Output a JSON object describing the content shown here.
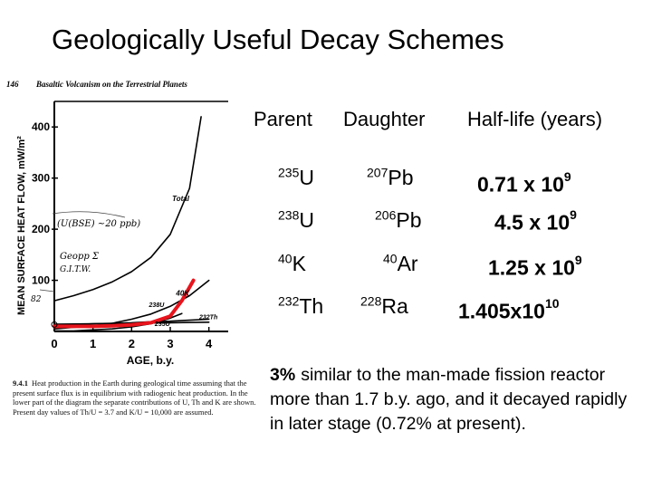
{
  "slide": {
    "title": "Geologically Useful Decay Schemes"
  },
  "figure": {
    "page_number": "146",
    "book_header": "Basaltic Volcanism on the Terrestrial Planets",
    "caption_num": "9.4.1",
    "caption_text": "Heat production in the Earth during geological time assuming that the present surface flux is in equilibrium with radiogenic heat production. In the lower part of the diagram the separate contributions of U, Th and K are shown. Present day values of Th/U = 3.7 and K/U = 10,000 are assumed.",
    "handwritten": {
      "line1": "(U(BSE) ~20 ppb)",
      "line2": "Geopp Σ",
      "line3": "G.I.T.W.",
      "mark": "82"
    }
  },
  "chart_data": {
    "type": "line",
    "xlabel": "AGE, b.y.",
    "ylabel": "MEAN SURFACE HEAT FLOW, mW/m²",
    "xlim": [
      0,
      4.5
    ],
    "ylim": [
      0,
      450
    ],
    "xticks": [
      "0",
      "1",
      "2",
      "3",
      "4"
    ],
    "yticks": [
      "100",
      "200",
      "300",
      "400"
    ],
    "grid": false,
    "series": [
      {
        "name": "Total",
        "x": [
          0,
          0.5,
          1.0,
          1.5,
          2.0,
          2.5,
          3.0,
          3.5,
          3.8
        ],
        "y": [
          60,
          70,
          82,
          97,
          117,
          145,
          190,
          280,
          420
        ],
        "color": "#000000"
      },
      {
        "name": "40K",
        "x": [
          0,
          0.5,
          1.0,
          1.5,
          2.0,
          2.5,
          3.0,
          3.5,
          4.0
        ],
        "y": [
          5,
          8,
          11,
          16,
          24,
          34,
          49,
          70,
          100
        ],
        "color": "#000000"
      },
      {
        "name": "238U",
        "x": [
          0,
          0.5,
          1.0,
          1.5,
          2.0,
          2.5,
          3.0,
          3.5,
          4.0
        ],
        "y": [
          12,
          13,
          15,
          16,
          17,
          19,
          20,
          22,
          24
        ],
        "color": "#000000"
      },
      {
        "name": "232Th",
        "x": [
          0,
          0.5,
          1.0,
          1.5,
          2.0,
          2.5,
          3.0,
          3.5,
          4.0
        ],
        "y": [
          14,
          14.5,
          15,
          15.5,
          16,
          16.5,
          17,
          17.5,
          18
        ],
        "color": "#000000"
      },
      {
        "name": "235U",
        "x": [
          0,
          0.5,
          1.0,
          1.5,
          2.0,
          2.5,
          3.0,
          3.3
        ],
        "y": [
          1,
          1,
          3,
          5,
          9,
          15,
          26,
          35
        ],
        "color": "#000000"
      },
      {
        "name": "",
        "x": [
          0,
          0.5,
          1.0,
          1.5,
          2.0,
          2.5,
          3.0,
          3.3,
          3.6
        ],
        "y": [
          10,
          10,
          10,
          11,
          13,
          17,
          30,
          60,
          100
        ],
        "color": "#e8141c"
      }
    ]
  },
  "table": {
    "headers": [
      "Parent",
      "Daughter",
      "Half-life (years)"
    ],
    "rows": [
      {
        "parent_mass": "235",
        "parent": "U",
        "daughter_mass": "207",
        "daughter": "Pb",
        "halflife": "0.71 x 10",
        "exp": "9"
      },
      {
        "parent_mass": "238",
        "parent": "U",
        "daughter_mass": "206",
        "daughter": "Pb",
        "halflife": "4.5 x 10",
        "exp": "9"
      },
      {
        "parent_mass": "40",
        "parent": "K",
        "daughter_mass": "40",
        "daughter": "Ar",
        "halflife": "1.25 x 10",
        "exp": "9"
      },
      {
        "parent_mass": "232",
        "parent": "Th",
        "daughter_mass": "228",
        "daughter": "Ra",
        "halflife": "1.405x10",
        "exp": "10"
      }
    ]
  },
  "note": {
    "percent": "3%",
    "text": "similar to the man-made fission reactor more than 1.7 b.y. ago, and it decayed rapidly in later stage (0.72% at present)."
  }
}
